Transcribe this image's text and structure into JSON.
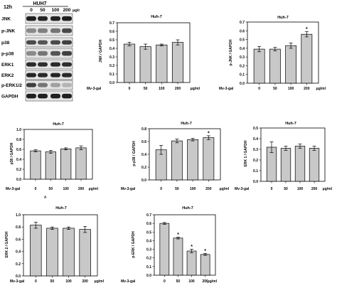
{
  "blot": {
    "time": "12h",
    "cell_line": "HUH7",
    "doses": [
      "0",
      "50",
      "100",
      "200"
    ],
    "unit": "μg/ml",
    "rows": [
      "JNK",
      "p-JNK",
      "p38",
      "p-p38",
      "ERK1",
      "ERK2",
      "p-ERK1/2",
      "GAPDH"
    ],
    "band_darkness": [
      [
        0.95,
        0.92,
        0.93,
        0.95
      ],
      [
        0.45,
        0.5,
        0.55,
        0.75
      ],
      [
        0.75,
        0.7,
        0.75,
        0.8
      ],
      [
        0.45,
        0.55,
        0.7,
        0.8
      ],
      [
        0.9,
        0.88,
        0.9,
        0.88
      ],
      [
        0.92,
        0.9,
        0.92,
        0.9
      ],
      [
        0.8,
        0.55,
        0.35,
        0.25
      ],
      [
        0.95,
        0.95,
        0.95,
        0.95
      ]
    ]
  },
  "chart_data": [
    {
      "type": "bar",
      "title": "Huh-7",
      "ylabel": "JNK / GAPDH",
      "treatment_label": "Mv-3-gal",
      "unit_label": "μg/ml",
      "categories": [
        "0",
        "50",
        "100",
        "200"
      ],
      "values": [
        0.45,
        0.42,
        0.44,
        0.47
      ],
      "errors": [
        0.02,
        0.03,
        0.01,
        0.03
      ],
      "significance": [
        "",
        "",
        "",
        ""
      ],
      "ylim": [
        0,
        0.7
      ],
      "yticks": [
        "0.0",
        "0.1",
        "0.2",
        "0.3",
        "0.4",
        "0.5",
        "0.6",
        "0.7"
      ]
    },
    {
      "type": "bar",
      "title": "Huh-7",
      "ylabel": "p-JNK / GAPDH",
      "treatment_label": "Mv-3-gal",
      "unit_label": "μg/ml",
      "categories": [
        "0",
        "50",
        "100",
        "200"
      ],
      "values": [
        0.39,
        0.39,
        0.43,
        0.56
      ],
      "errors": [
        0.03,
        0.02,
        0.03,
        0.03
      ],
      "significance": [
        "",
        "",
        "",
        "*"
      ],
      "ylim": [
        0,
        0.7
      ],
      "yticks": [
        "0.0",
        "0.1",
        "0.2",
        "0.3",
        "0.4",
        "0.5",
        "0.6",
        "0.7"
      ]
    },
    {
      "type": "bar",
      "title": "Huh-7",
      "ylabel": "p38 / GAPDH",
      "treatment_label": "Mv-3-gal",
      "unit_label": "μg/ml",
      "x_note": "A",
      "categories": [
        "0",
        "50",
        "100",
        "200"
      ],
      "values": [
        0.57,
        0.55,
        0.61,
        0.63
      ],
      "errors": [
        0.02,
        0.03,
        0.02,
        0.04
      ],
      "significance": [
        "",
        "",
        "",
        ""
      ],
      "ylim": [
        0,
        1.0
      ],
      "yticks": [
        "0.0",
        "0.2",
        "0.4",
        "0.6",
        "0.8",
        "1.0"
      ]
    },
    {
      "type": "bar",
      "title": "Huh-7",
      "ylabel": "p-p38 / GAPDH",
      "treatment_label": "Mv-3-gal",
      "unit_label": "μg/ml",
      "categories": [
        "0",
        "50",
        "100",
        "200"
      ],
      "values": [
        0.47,
        0.61,
        0.63,
        0.66
      ],
      "errors": [
        0.07,
        0.03,
        0.02,
        0.03
      ],
      "significance": [
        "",
        "",
        "",
        "*"
      ],
      "ylim": [
        0,
        0.8
      ],
      "yticks": [
        "0.0",
        "0.2",
        "0.4",
        "0.6",
        "0.8"
      ]
    },
    {
      "type": "bar",
      "title": "Huh-7",
      "ylabel": "ERK 1 / GAPDH",
      "treatment_label": "Mv-3-gal",
      "unit_label": "μg/ml",
      "categories": [
        "0",
        "50",
        "100",
        "200"
      ],
      "values": [
        0.32,
        0.31,
        0.33,
        0.31
      ],
      "errors": [
        0.05,
        0.02,
        0.02,
        0.02
      ],
      "significance": [
        "",
        "",
        "",
        ""
      ],
      "ylim": [
        0,
        0.5
      ],
      "yticks": [
        "0.0",
        "0.1",
        "0.2",
        "0.3",
        "0.4",
        "0.5"
      ]
    },
    {
      "type": "bar",
      "title": "Huh-7",
      "ylabel": "ERK 2 / GAPDH",
      "treatment_label": "Mv-3-gal",
      "unit_label": "μg/ml",
      "categories": [
        "0",
        "50",
        "100",
        "200"
      ],
      "values": [
        0.83,
        0.78,
        0.78,
        0.76
      ],
      "errors": [
        0.05,
        0.02,
        0.02,
        0.05
      ],
      "significance": [
        "",
        "",
        "",
        ""
      ],
      "ylim": [
        0,
        1.0
      ],
      "yticks": [
        "0.0",
        "0.2",
        "0.4",
        "0.6",
        "0.8",
        "1.0"
      ]
    },
    {
      "type": "bar",
      "title": "Huh-7",
      "ylabel": "p-ERK / GAPDH",
      "treatment_label": "Mv-3-gal",
      "unit_label": "μg/ml",
      "categories": [
        "0",
        "50",
        "100",
        "200"
      ],
      "values": [
        0.6,
        0.43,
        0.28,
        0.24
      ],
      "errors": [
        0.01,
        0.01,
        0.02,
        0.01
      ],
      "significance": [
        "",
        "*",
        "*",
        "*"
      ],
      "ylim": [
        0,
        0.7
      ],
      "yticks": [
        "0.0",
        "0.1",
        "0.2",
        "0.3",
        "0.4",
        "0.5",
        "0.6",
        "0.7"
      ]
    }
  ]
}
